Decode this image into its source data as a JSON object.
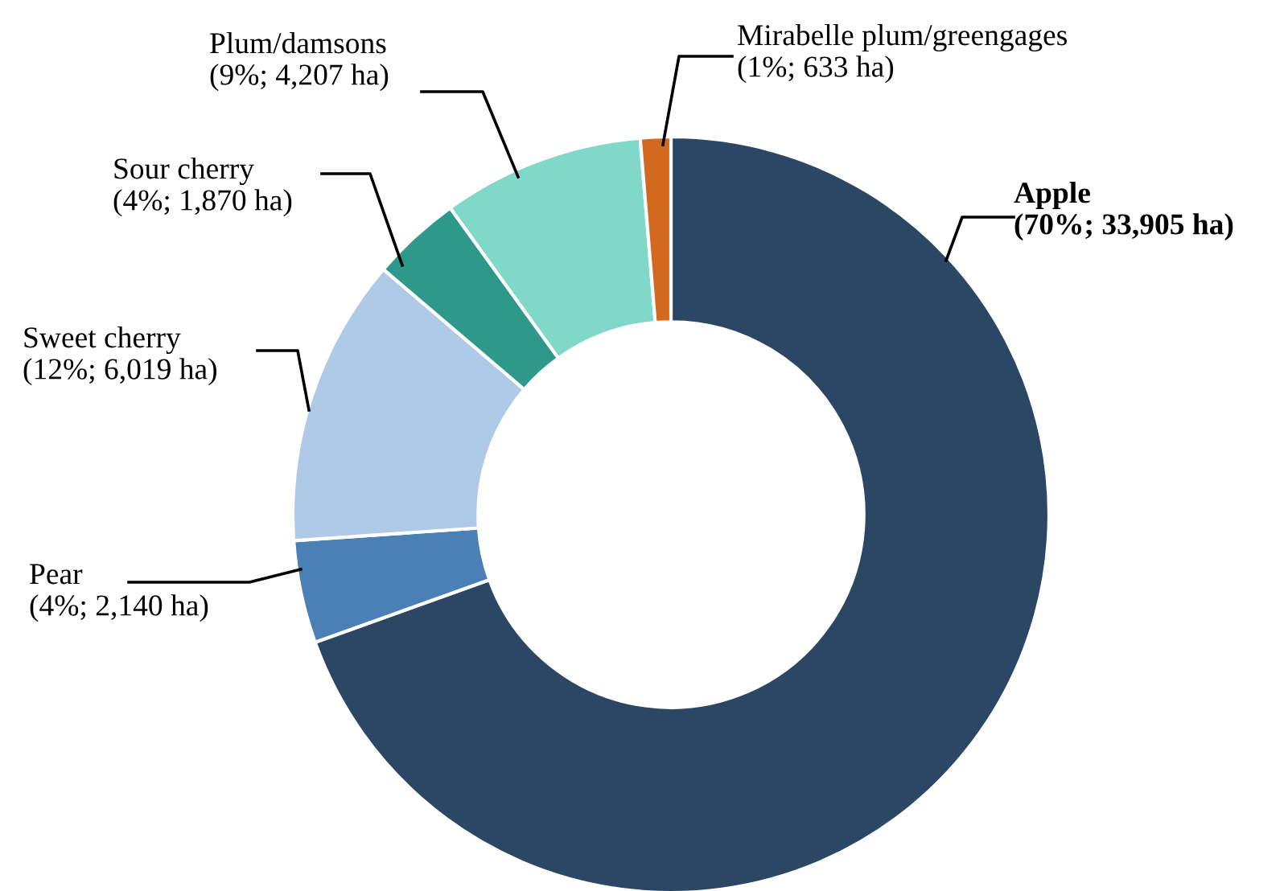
{
  "chart_data": {
    "type": "donut",
    "categories": [
      "Apple",
      "Pear",
      "Sweet cherry",
      "Sour cherry",
      "Plum/damsons",
      "Mirabelle plum/greengages"
    ],
    "values": [
      33905,
      2140,
      6019,
      1870,
      4207,
      633
    ],
    "value_labels": [
      "(70%; 33,905 ha)",
      "(4%; 2,140 ha)",
      "(12%; 6,019 ha)",
      "(4%; 1,870 ha)",
      "(9%; 4,207 ha)",
      "(1%; 633 ha)"
    ],
    "colors": [
      "#2b4764",
      "#4a80b6",
      "#aecae6",
      "#2e998a",
      "#80d8c9",
      "#d2691e"
    ],
    "legend": false
  }
}
